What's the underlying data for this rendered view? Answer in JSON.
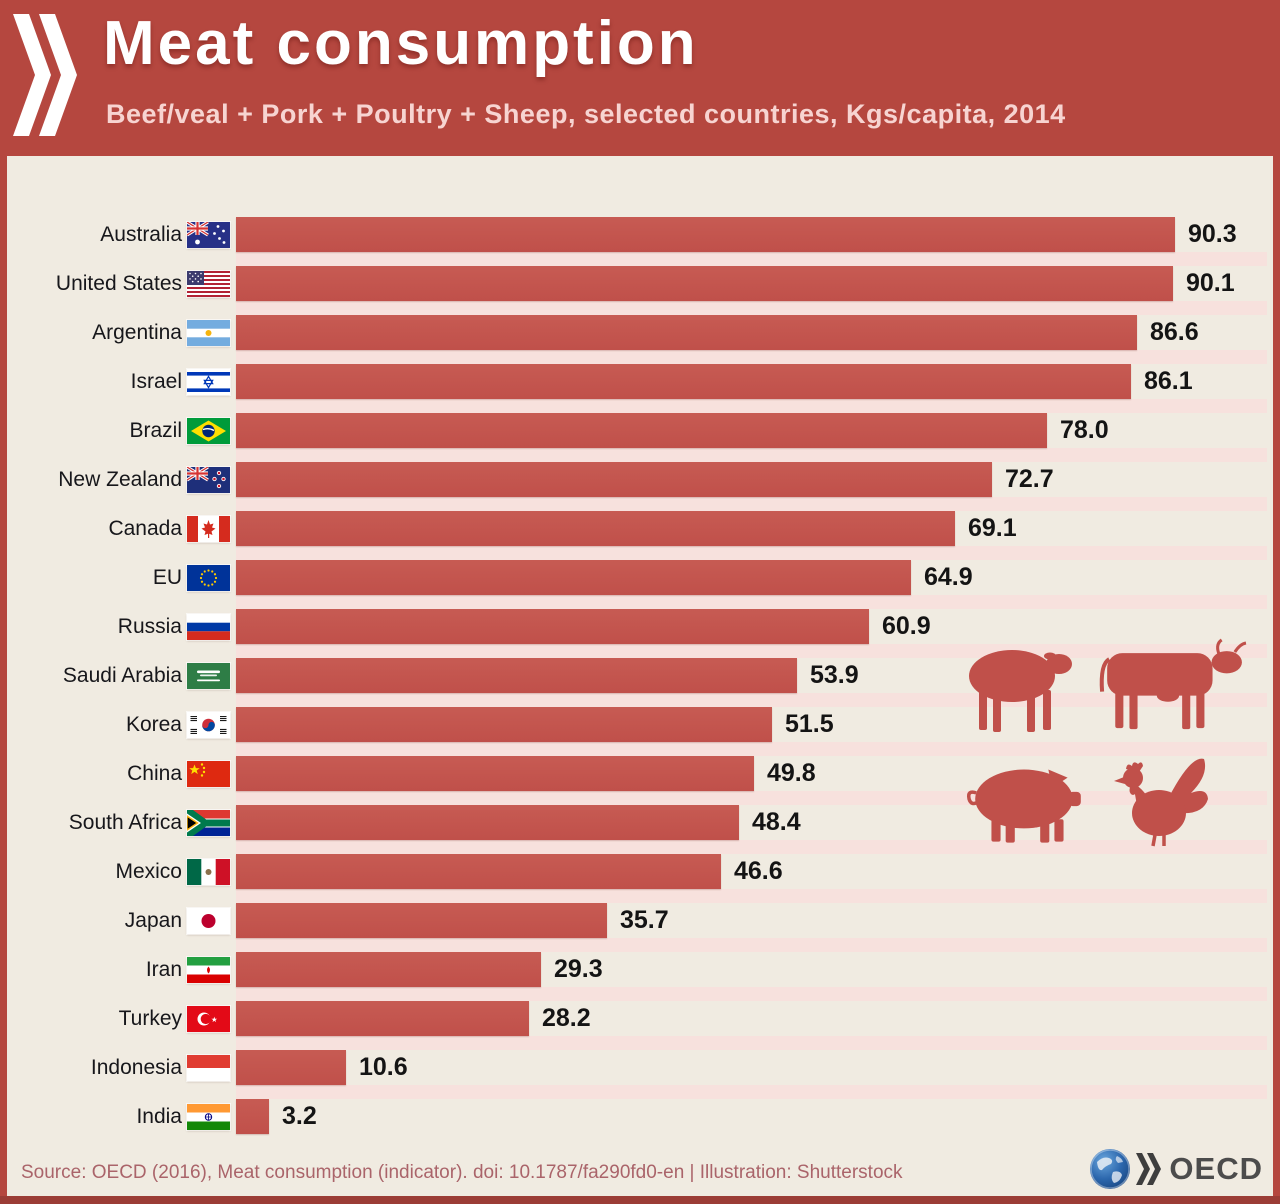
{
  "header": {
    "title": "Meat consumption",
    "subtitle": "Beef/veal + Pork + Poultry + Sheep, selected countries, Kgs/capita, 2014"
  },
  "chart_data": {
    "type": "bar",
    "orientation": "horizontal",
    "title": "Meat consumption",
    "subtitle": "Beef/veal + Pork + Poultry + Sheep, selected countries, Kgs/capita, 2014",
    "unit": "Kgs/capita",
    "year": "2014",
    "xlim": [
      0,
      100
    ],
    "grid": false,
    "value_labels": "end-of-bar",
    "categories": [
      "Australia",
      "United States",
      "Argentina",
      "Israel",
      "Brazil",
      "New Zealand",
      "Canada",
      "EU",
      "Russia",
      "Saudi Arabia",
      "Korea",
      "China",
      "South Africa",
      "Mexico",
      "Japan",
      "Iran",
      "Turkey",
      "Indonesia",
      "India"
    ],
    "values": [
      90.3,
      90.1,
      86.6,
      86.1,
      78.0,
      72.7,
      69.1,
      64.9,
      60.9,
      53.9,
      51.5,
      49.8,
      48.4,
      46.6,
      35.7,
      29.3,
      28.2,
      10.6,
      3.2
    ],
    "rows": [
      {
        "country": "Australia",
        "value": 90.3,
        "flag": "australia"
      },
      {
        "country": "United States",
        "value": 90.1,
        "flag": "usa"
      },
      {
        "country": "Argentina",
        "value": 86.6,
        "flag": "argentina"
      },
      {
        "country": "Israel",
        "value": 86.1,
        "flag": "israel"
      },
      {
        "country": "Brazil",
        "value": 78.0,
        "flag": "brazil"
      },
      {
        "country": "New Zealand",
        "value": 72.7,
        "flag": "new-zealand"
      },
      {
        "country": "Canada",
        "value": 69.1,
        "flag": "canada"
      },
      {
        "country": "EU",
        "value": 64.9,
        "flag": "eu"
      },
      {
        "country": "Russia",
        "value": 60.9,
        "flag": "russia"
      },
      {
        "country": "Saudi Arabia",
        "value": 53.9,
        "flag": "saudi-arabia"
      },
      {
        "country": "Korea",
        "value": 51.5,
        "flag": "korea"
      },
      {
        "country": "China",
        "value": 49.8,
        "flag": "china"
      },
      {
        "country": "South Africa",
        "value": 48.4,
        "flag": "south-africa"
      },
      {
        "country": "Mexico",
        "value": 46.6,
        "flag": "mexico"
      },
      {
        "country": "Japan",
        "value": 35.7,
        "flag": "japan"
      },
      {
        "country": "Iran",
        "value": 29.3,
        "flag": "iran"
      },
      {
        "country": "Turkey",
        "value": 28.2,
        "flag": "turkey"
      },
      {
        "country": "Indonesia",
        "value": 10.6,
        "flag": "indonesia"
      },
      {
        "country": "India",
        "value": 3.2,
        "flag": "india"
      }
    ]
  },
  "illustrations": [
    "sheep",
    "cow",
    "pig",
    "rooster"
  ],
  "footer": {
    "source": "Source: OECD (2016), Meat consumption (indicator). doi: 10.1787/fa290fd0-en | Illustration: Shutterstock",
    "logo_text": "OECD"
  },
  "colors": {
    "header_red": "#b5473f",
    "bar_red": "#c0504a",
    "bar_red_light": "#c75b53",
    "panel_cream": "#f0ebe1",
    "stripe_pink": "#f7e1dd",
    "subtitle_pink": "#f7d4d1",
    "source_text": "#aa646a"
  }
}
